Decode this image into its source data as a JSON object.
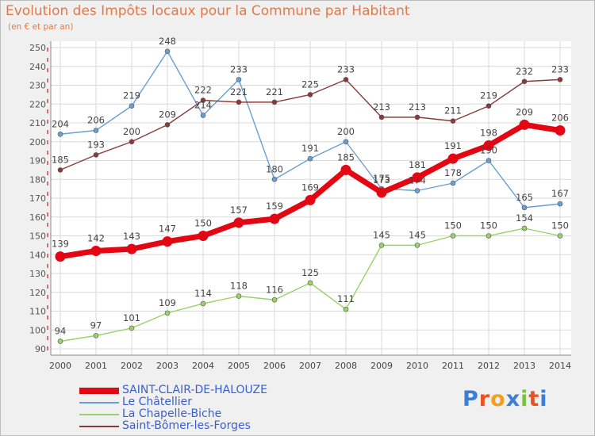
{
  "header": {
    "title": "Evolution des Impôts locaux pour la Commune par Habitant",
    "subtitle": "(en € et par an)"
  },
  "logo": {
    "text": "Proxiti",
    "colors": [
      "#3a7fd5",
      "#e8531f",
      "#f0a020",
      "#3a7fd5",
      "#7cc242",
      "#e8531f",
      "#3a7fd5"
    ]
  },
  "chart_data": {
    "type": "line",
    "title": "Evolution des Impôts locaux pour la Commune par Habitant",
    "subtitle": "(en € et par an)",
    "xlabel": "",
    "ylabel": "",
    "ylim": [
      90,
      250
    ],
    "yticks": [
      90,
      100,
      110,
      120,
      130,
      140,
      150,
      160,
      170,
      180,
      190,
      200,
      210,
      220,
      230,
      240,
      250
    ],
    "grid": true,
    "legend_position": "bottom-left",
    "categories": [
      "2000",
      "2001",
      "2002",
      "2003",
      "2004",
      "2005",
      "2006",
      "2007",
      "2008",
      "2009",
      "2010",
      "2011",
      "2012",
      "2013",
      "2014"
    ],
    "series": [
      {
        "name": "SAINT-CLAIR-DE-HALOUZE",
        "color": "#e30613",
        "values": [
          139,
          142,
          143,
          147,
          150,
          157,
          159,
          169,
          185,
          173,
          181,
          191,
          198,
          209,
          206
        ],
        "labels": [
          "139",
          "142",
          "143",
          "147",
          "150",
          "157",
          "159",
          "169",
          "185",
          "173",
          "181",
          "191",
          "198",
          "209",
          "206"
        ]
      },
      {
        "name": "Le Châtellier",
        "color": "#6a9fd0",
        "values": [
          204,
          206,
          219,
          248,
          214,
          233,
          180,
          191,
          200,
          175,
          174,
          178,
          190,
          165,
          167
        ],
        "labels": [
          "204",
          "206",
          "219",
          "248",
          "214",
          "233",
          "180",
          "191",
          "200",
          "175",
          "174",
          "178",
          "190",
          "165",
          "167"
        ]
      },
      {
        "name": "La Chapelle-Biche",
        "color": "#98d26a",
        "values": [
          94,
          97,
          101,
          109,
          114,
          118,
          116,
          125,
          111,
          145,
          145,
          150,
          150,
          154,
          150
        ],
        "labels": [
          "94",
          "97",
          "101",
          "109",
          "114",
          "118",
          "116",
          "125",
          "111",
          "145",
          "145",
          "150",
          "150",
          "154",
          "150"
        ]
      },
      {
        "name": "Saint-Bômer-les-Forges",
        "color": "#8b3a3a",
        "values": [
          185,
          193,
          200,
          209,
          222,
          221,
          221,
          225,
          233,
          213,
          213,
          211,
          219,
          232,
          233
        ],
        "labels": [
          "185",
          "193",
          "200",
          "209",
          "222",
          "221",
          "221",
          "225",
          "233",
          "213",
          "213",
          "211",
          "219",
          "232",
          "233"
        ]
      }
    ]
  }
}
